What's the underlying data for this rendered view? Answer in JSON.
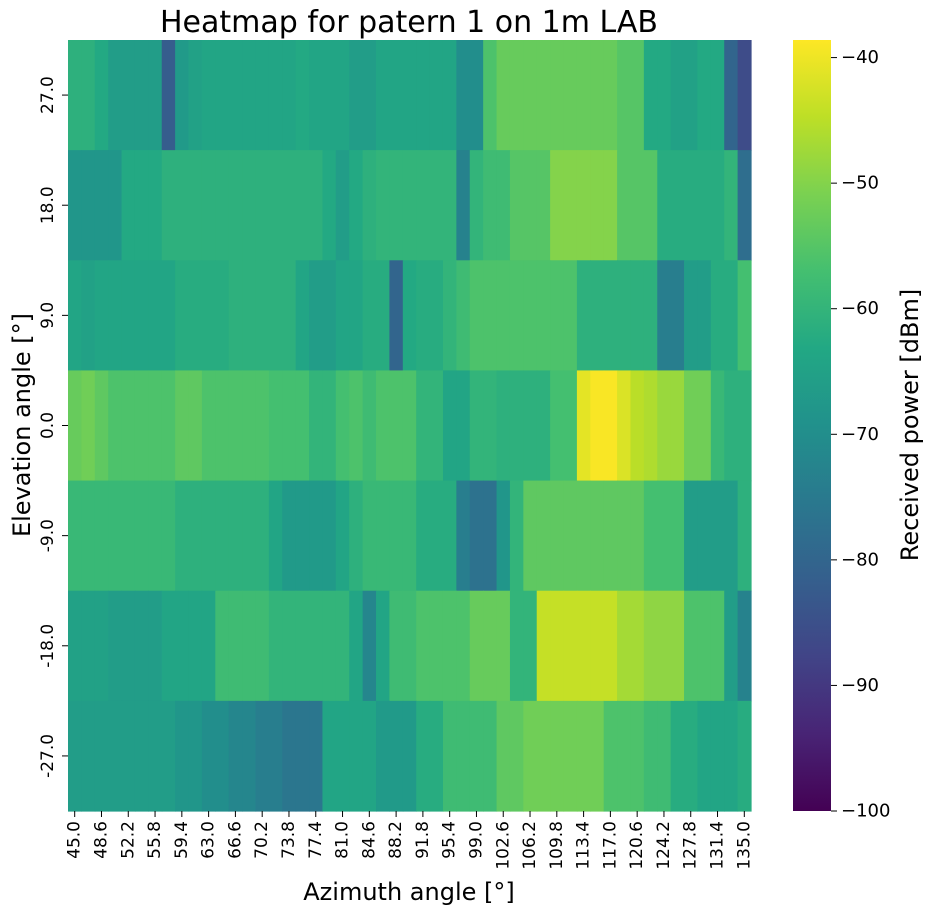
{
  "chart_data": {
    "type": "heatmap",
    "title": "Heatmap for patern 1 on 1m LAB",
    "xlabel": "Azimuth angle [°]",
    "ylabel": "Elevation angle [°]",
    "colorbar_label": "Received power [dBm]",
    "colormap": "viridis",
    "vmin": -100,
    "vmax": -38.6,
    "colorbar_ticks": [
      -40,
      -50,
      -60,
      -70,
      -80,
      -90,
      -100
    ],
    "colorbar_tick_labels": [
      "−40",
      "−50",
      "−60",
      "−70",
      "−80",
      "−90",
      "−100"
    ],
    "x_tick_labels": [
      "45.0",
      "48.6",
      "52.2",
      "55.8",
      "59.4",
      "63.0",
      "66.6",
      "70.2",
      "73.8",
      "77.4",
      "81.0",
      "84.6",
      "88.2",
      "91.8",
      "95.4",
      "99.0",
      "102.6",
      "106.2",
      "109.8",
      "113.4",
      "117.0",
      "120.6",
      "124.2",
      "127.8",
      "131.4",
      "135.0"
    ],
    "y_tick_labels": [
      "27.0",
      "18.0",
      "9.0",
      "0.0",
      "-9.0",
      "-18.0",
      "-27.0"
    ],
    "x_count": 51,
    "y_values": [
      27.0,
      18.0,
      9.0,
      0.0,
      -9.0,
      -18.0,
      -27.0
    ],
    "values": [
      [
        -61,
        -61,
        -63,
        -66,
        -66,
        -66,
        -66,
        -82,
        -67,
        -65,
        -64,
        -64,
        -64,
        -64,
        -64,
        -64,
        -64,
        -63,
        -64,
        -64,
        -64,
        -66,
        -66,
        -64,
        -64,
        -64,
        -64,
        -64,
        -64,
        -70,
        -70,
        -56,
        -53,
        -53,
        -53,
        -53,
        -53,
        -53,
        -53,
        -53,
        -53,
        -55,
        -55,
        -63,
        -63,
        -65,
        -65,
        -63,
        -63,
        -80,
        -86
      ],
      [
        -68,
        -68,
        -68,
        -68,
        -63,
        -63,
        -63,
        -61,
        -61,
        -61,
        -61,
        -61,
        -61,
        -61,
        -61,
        -61,
        -61,
        -61,
        -61,
        -63,
        -66,
        -63,
        -61,
        -60,
        -60,
        -60,
        -60,
        -60,
        -60,
        -73,
        -60,
        -58,
        -58,
        -55,
        -55,
        -55,
        -50,
        -50,
        -50,
        -50,
        -50,
        -55,
        -55,
        -55,
        -62,
        -62,
        -62,
        -62,
        -62,
        -60,
        -78
      ],
      [
        -64,
        -65,
        -64,
        -64,
        -64,
        -64,
        -64,
        -64,
        -62,
        -62,
        -62,
        -62,
        -61,
        -61,
        -61,
        -61,
        -61,
        -64,
        -66,
        -66,
        -64,
        -64,
        -62,
        -62,
        -80,
        -63,
        -62,
        -62,
        -60,
        -58,
        -56,
        -56,
        -56,
        -56,
        -56,
        -56,
        -56,
        -56,
        -61,
        -61,
        -61,
        -61,
        -61,
        -61,
        -74,
        -74,
        -66,
        -66,
        -62,
        -62,
        -57
      ],
      [
        -53,
        -52,
        -54,
        -56,
        -56,
        -56,
        -56,
        -56,
        -54,
        -54,
        -56,
        -56,
        -56,
        -56,
        -56,
        -57,
        -57,
        -57,
        -60,
        -60,
        -57,
        -56,
        -58,
        -56,
        -56,
        -56,
        -60,
        -60,
        -64,
        -64,
        -60,
        -60,
        -61,
        -61,
        -61,
        -61,
        -57,
        -57,
        -41,
        -39,
        -39,
        -42,
        -45,
        -46,
        -48,
        -48,
        -52,
        -52,
        -59,
        -61,
        -61
      ],
      [
        -59,
        -59,
        -59,
        -59,
        -59,
        -59,
        -59,
        -59,
        -61,
        -61,
        -61,
        -61,
        -61,
        -61,
        -61,
        -64,
        -67,
        -67,
        -67,
        -67,
        -64,
        -61,
        -59,
        -59,
        -59,
        -59,
        -62,
        -62,
        -62,
        -74,
        -77,
        -77,
        -68,
        -60,
        -54,
        -54,
        -54,
        -54,
        -54,
        -54,
        -54,
        -54,
        -54,
        -57,
        -57,
        -57,
        -66,
        -66,
        -66,
        -66,
        -61
      ],
      [
        -65,
        -65,
        -65,
        -66,
        -66,
        -66,
        -66,
        -64,
        -64,
        -64,
        -64,
        -58,
        -58,
        -58,
        -58,
        -60,
        -60,
        -60,
        -60,
        -60,
        -60,
        -64,
        -72,
        -64,
        -58,
        -58,
        -56,
        -56,
        -56,
        -56,
        -53,
        -53,
        -53,
        -60,
        -60,
        -44,
        -44,
        -44,
        -44,
        -44,
        -44,
        -47,
        -47,
        -49,
        -49,
        -49,
        -56,
        -56,
        -56,
        -66,
        -73
      ],
      [
        -66,
        -66,
        -66,
        -66,
        -66,
        -66,
        -66,
        -66,
        -68,
        -68,
        -70,
        -70,
        -72,
        -72,
        -74,
        -74,
        -76,
        -76,
        -76,
        -64,
        -64,
        -64,
        -64,
        -67,
        -67,
        -67,
        -62,
        -62,
        -58,
        -58,
        -58,
        -58,
        -54,
        -54,
        -52,
        -52,
        -52,
        -52,
        -52,
        -52,
        -56,
        -56,
        -56,
        -58,
        -58,
        -62,
        -62,
        -64,
        -64,
        -64,
        -62
      ]
    ]
  }
}
